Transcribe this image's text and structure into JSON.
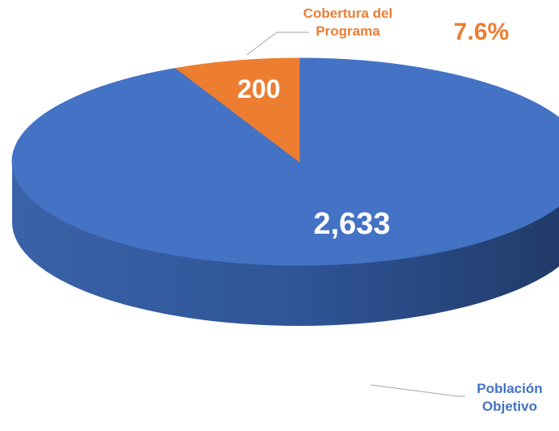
{
  "chart_data": {
    "type": "pie",
    "categories": [
      "Población Objetivo",
      "Cobertura del Programa"
    ],
    "values": [
      2633,
      200
    ],
    "value_labels": [
      "2,633",
      "200"
    ],
    "colors": [
      "#4472c4",
      "#ed7d31"
    ],
    "annotations": [
      "7.6%"
    ]
  }
}
